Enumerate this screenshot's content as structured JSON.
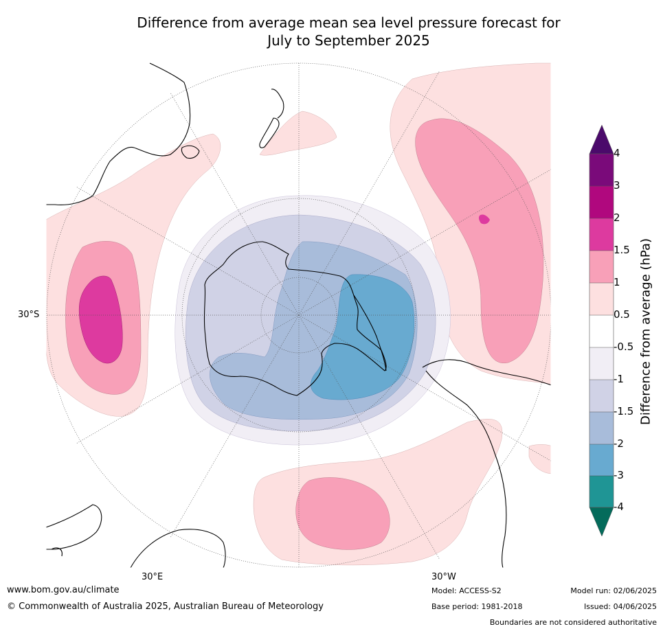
{
  "title_line1": "Difference from average mean sea level pressure forecast for",
  "title_line2": "July to September 2025",
  "lat_labels": [
    "30°S"
  ],
  "lon_labels": [
    "30°E",
    "30°W"
  ],
  "colorbar": {
    "label": "Difference from average (hPa)",
    "ticks": [
      "4",
      "3",
      "2",
      "1.5",
      "1",
      "0.5",
      "-0.5",
      "-1",
      "-1.5",
      "-2",
      "-3",
      "-4"
    ],
    "colors": {
      "gt4": "#4b0a6b",
      "3_4": "#7a0a7a",
      "2_3": "#b0087e",
      "1.5_2": "#dd3a9f",
      "1_1.5": "#f8a0b8",
      "0.5_1": "#fde0e0",
      "neutral": "#ffffff",
      "-1_-0.5": "#f1eef5",
      "-1.5_-1": "#d0d2e6",
      "-2_-1.5": "#a8bcda",
      "-3_-2": "#68aad0",
      "-4_-3": "#1f9595",
      "lt-4": "#046b5b"
    }
  },
  "footer": {
    "website": "www.bom.gov.au/climate",
    "copyright": "© Commonwealth of Australia 2025, Australian Bureau of Meteorology",
    "model": "Model: ACCESS-S2",
    "base_period": "Base period: 1981-2018",
    "model_run": "Model run: 02/06/2025",
    "issued": "Issued: 04/06/2025",
    "boundaries": "Boundaries are not considered authoritative"
  }
}
